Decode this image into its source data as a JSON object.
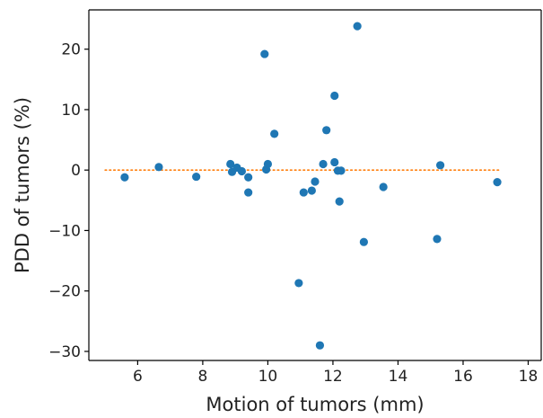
{
  "chart_data": {
    "type": "scatter",
    "title": "",
    "xlabel": "Motion of tumors (mm)",
    "ylabel": "PDD of tumors (%)",
    "xlim": [
      4.5,
      18.4
    ],
    "ylim": [
      -31.5,
      26.5
    ],
    "xticks": [
      6,
      8,
      10,
      12,
      14,
      16,
      18
    ],
    "yticks": [
      -30,
      -20,
      -10,
      0,
      10,
      20
    ],
    "xtick_labels": [
      "6",
      "8",
      "10",
      "12",
      "14",
      "16",
      "18"
    ],
    "ytick_labels": [
      "−30",
      "−20",
      "−10",
      "0",
      "10",
      "20"
    ],
    "grid": false,
    "legend": false,
    "colors": {
      "points": "#1f77b4",
      "reference_line": "#ff7f0e"
    },
    "reference_line": {
      "y": 0,
      "x_start": 5,
      "x_end": 17.1,
      "style": "dotted"
    },
    "series": [
      {
        "points": [
          [
            5.6,
            -1.2
          ],
          [
            6.65,
            0.5
          ],
          [
            7.8,
            -1.1
          ],
          [
            8.85,
            1.0
          ],
          [
            8.9,
            -0.3
          ],
          [
            9.05,
            0.4
          ],
          [
            9.2,
            -0.2
          ],
          [
            9.4,
            -1.2
          ],
          [
            9.4,
            -3.7
          ],
          [
            9.9,
            19.2
          ],
          [
            9.95,
            0.1
          ],
          [
            10.0,
            1.0
          ],
          [
            10.2,
            6.0
          ],
          [
            10.95,
            -18.7
          ],
          [
            11.1,
            -3.7
          ],
          [
            11.35,
            -3.4
          ],
          [
            11.45,
            -1.9
          ],
          [
            11.6,
            -29.0
          ],
          [
            11.7,
            1.0
          ],
          [
            11.8,
            6.6
          ],
          [
            12.05,
            1.3
          ],
          [
            12.05,
            12.3
          ],
          [
            12.15,
            -0.1
          ],
          [
            12.25,
            -0.1
          ],
          [
            12.2,
            -5.2
          ],
          [
            12.75,
            23.8
          ],
          [
            12.95,
            -11.9
          ],
          [
            13.55,
            -2.8
          ],
          [
            15.2,
            -11.4
          ],
          [
            15.3,
            0.8
          ],
          [
            17.05,
            -2.0
          ]
        ]
      }
    ]
  }
}
